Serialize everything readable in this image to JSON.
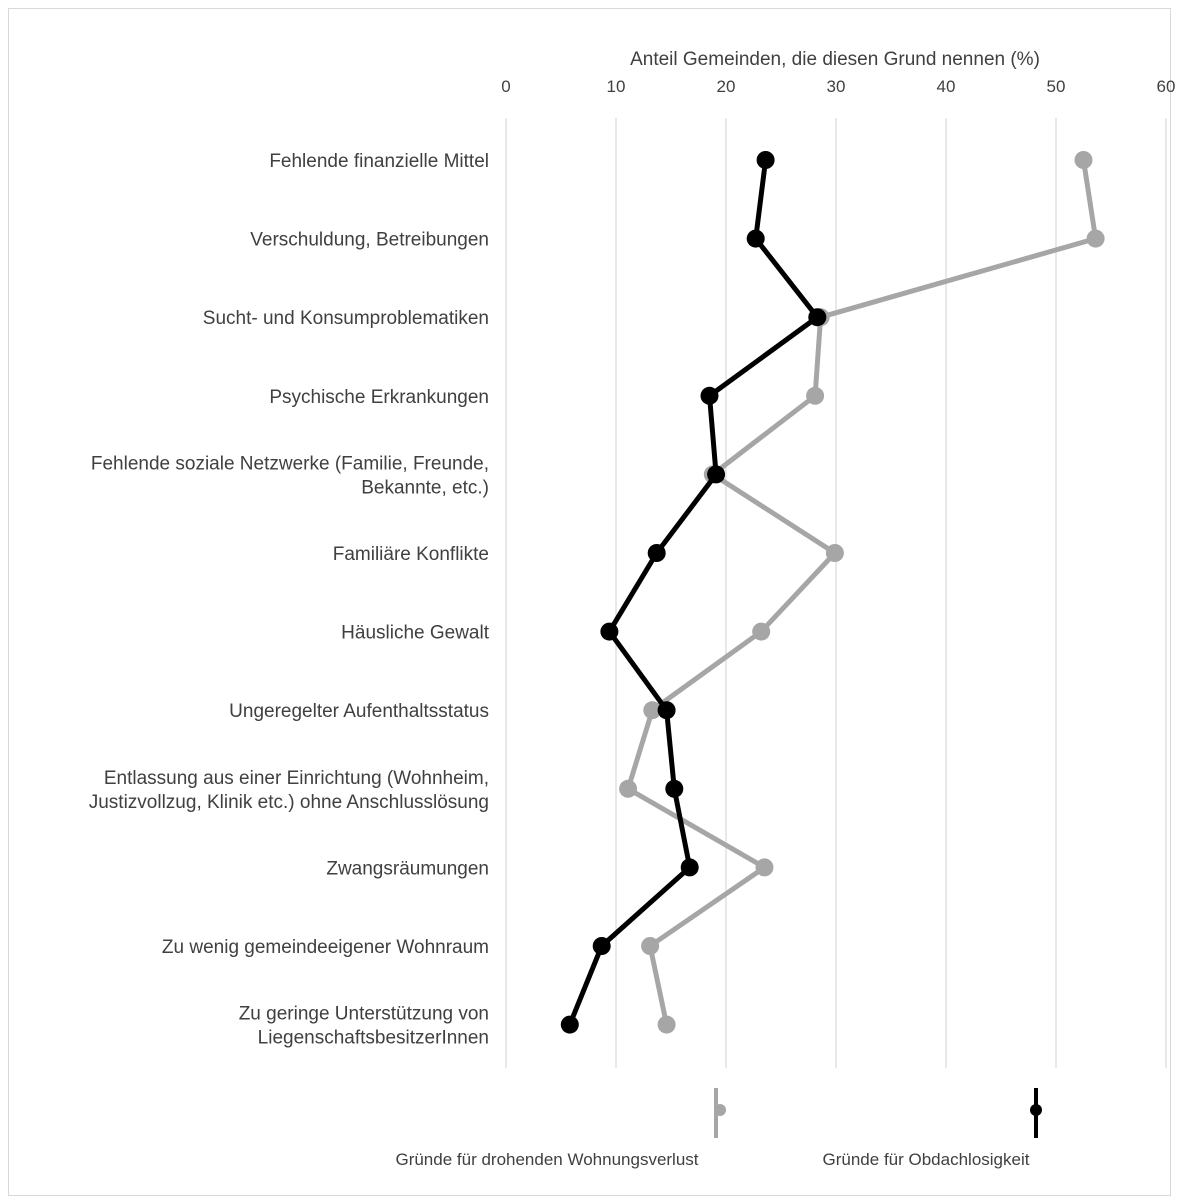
{
  "chart_data": {
    "type": "line",
    "orientation": "horizontal",
    "xlabel": "Anteil Gemeinden, die diesen Grund nennen (%)",
    "xlim": [
      0,
      60
    ],
    "xticks": [
      0,
      10,
      20,
      30,
      40,
      50,
      60
    ],
    "grid": true,
    "legend_position": "bottom",
    "categories": [
      [
        "Fehlende finanzielle Mittel"
      ],
      [
        "Verschuldung, Betreibungen"
      ],
      [
        "Sucht- und Konsumproblematiken"
      ],
      [
        "Psychische Erkrankungen"
      ],
      [
        "Fehlende soziale Netzwerke (Familie, Freunde,",
        "Bekannte, etc.)"
      ],
      [
        "Familiäre Konflikte"
      ],
      [
        "Häusliche Gewalt"
      ],
      [
        "Ungeregelter Aufenthaltsstatus"
      ],
      [
        "Entlassung aus einer Einrichtung (Wohnheim,",
        "Justizvollzug, Klinik etc.) ohne Anschlusslösung"
      ],
      [
        "Zwangsräumungen"
      ],
      [
        "Zu wenig gemeindeeigener Wohnraum"
      ],
      [
        "Zu geringe Unterstützung von",
        "LiegenschaftsbesitzerInnen"
      ]
    ],
    "series": [
      {
        "name": "Gründe für drohenden Wohnungsverlust",
        "color": "#a6a6a6",
        "values": [
          52.5,
          53.6,
          28.6,
          28.1,
          18.8,
          29.9,
          23.2,
          13.3,
          11.1,
          23.5,
          13.1,
          14.6
        ]
      },
      {
        "name": "Gründe für Obdachlosigkeit",
        "color": "#000000",
        "values": [
          23.6,
          22.7,
          28.3,
          18.5,
          19.1,
          13.7,
          9.4,
          14.6,
          15.3,
          16.7,
          8.7,
          5.8
        ]
      }
    ]
  }
}
